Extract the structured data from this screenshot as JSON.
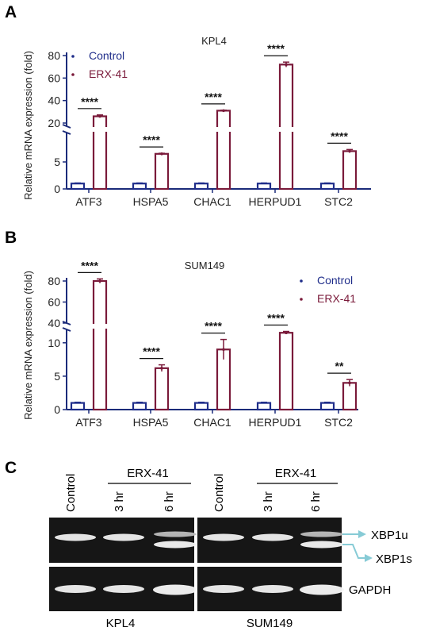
{
  "colors": {
    "control": "#1f2d8a",
    "erx": "#7a1a3a",
    "axis": "#1b2b7a",
    "gel_bg": "#161616",
    "arrow": "#87cbd6"
  },
  "chart_data": [
    {
      "panel": "A",
      "type": "bar",
      "title": "KPL4",
      "ylabel": "Relative mRNA expression (fold)",
      "categories": [
        "ATF3",
        "HSPA5",
        "CHAC1",
        "HERPUD1",
        "STC2"
      ],
      "series": [
        {
          "name": "Control",
          "values": [
            1,
            1,
            1,
            1,
            1
          ]
        },
        {
          "name": "ERX-41",
          "values": [
            26,
            6.5,
            31,
            72,
            7
          ]
        }
      ],
      "errors": [
        [
          0.1,
          0.1,
          0.1,
          0.1,
          0.1
        ],
        [
          1.2,
          0.1,
          0.4,
          2.2,
          0.3
        ]
      ],
      "significance": [
        "****",
        "****",
        "****",
        "****",
        "****"
      ],
      "y_axis": "broken",
      "ylim_lower": [
        0,
        10
      ],
      "ylim_upper": [
        20,
        80
      ],
      "yticks": [
        0,
        5,
        20,
        40,
        60,
        80
      ],
      "legend_position": "top-left"
    },
    {
      "panel": "B",
      "type": "bar",
      "title": "SUM149",
      "ylabel": "Relative mRNA expression (fold)",
      "categories": [
        "ATF3",
        "HSPA5",
        "CHAC1",
        "HERPUD1",
        "STC2"
      ],
      "series": [
        {
          "name": "Control",
          "values": [
            1,
            1,
            1,
            1,
            1
          ]
        },
        {
          "name": "ERX-41",
          "values": [
            80,
            6.2,
            9,
            11.5,
            4
          ]
        }
      ],
      "errors": [
        [
          0.1,
          0.1,
          0.1,
          0.1,
          0.1
        ],
        [
          2,
          0.5,
          1.5,
          0.2,
          0.5
        ]
      ],
      "significance": [
        "****",
        "****",
        "****",
        "****",
        "**"
      ],
      "y_axis": "broken",
      "ylim_lower": [
        0,
        12
      ],
      "ylim_upper": [
        20,
        85
      ],
      "yticks": [
        0,
        5,
        10,
        40,
        60,
        80
      ],
      "legend_position": "top-right"
    }
  ],
  "panel_c": {
    "letter": "C",
    "treatment_label": "ERX-41",
    "lanes": [
      "Control",
      "3 hr",
      "6 hr"
    ],
    "cell_lines": [
      "KPL4",
      "SUM149"
    ],
    "band_labels": [
      "XBP1u",
      "XBP1s",
      "GAPDH"
    ]
  }
}
